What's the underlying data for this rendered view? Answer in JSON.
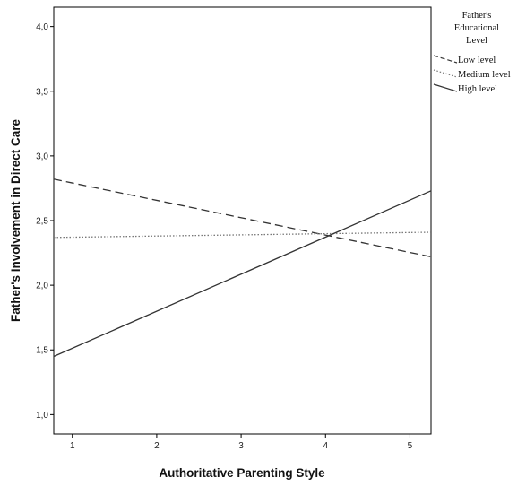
{
  "chart_data": {
    "type": "line",
    "title": "",
    "xlabel": "Authoritative Parenting Style",
    "ylabel": "Father's Involvement in Direct Care",
    "xlim": [
      0.78,
      5.25
    ],
    "ylim": [
      0.85,
      4.15
    ],
    "x_ticks": [
      1,
      2,
      3,
      4,
      5
    ],
    "x_tick_labels": [
      "1",
      "2",
      "3",
      "4",
      "5"
    ],
    "y_ticks": [
      1.0,
      1.5,
      2.0,
      2.5,
      3.0,
      3.5,
      4.0
    ],
    "y_tick_labels": [
      "1,0",
      "1,5",
      "2,0",
      "2,5",
      "3,0",
      "3,5",
      "4,0"
    ],
    "grid": false,
    "legend_position": "right",
    "legend_title": [
      "Father's",
      "Educational",
      "Level"
    ],
    "series": [
      {
        "name": "Low level",
        "style": "dashed",
        "color": "#333333",
        "x": [
          0.78,
          5.25
        ],
        "y": [
          2.82,
          2.22
        ]
      },
      {
        "name": "Medium level",
        "style": "dotted",
        "color": "#777777",
        "x": [
          0.78,
          5.25
        ],
        "y": [
          2.37,
          2.41
        ]
      },
      {
        "name": "High level",
        "style": "solid",
        "color": "#333333",
        "x": [
          0.78,
          5.25
        ],
        "y": [
          1.45,
          2.73
        ]
      }
    ]
  }
}
